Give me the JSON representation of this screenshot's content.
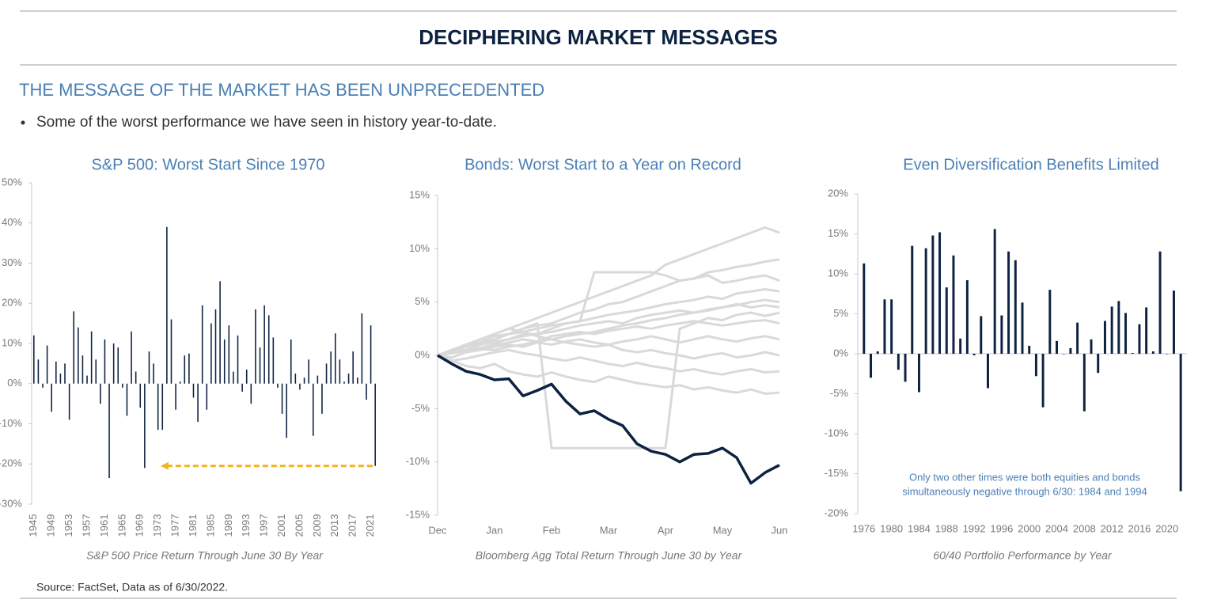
{
  "header": {
    "title": "DECIPHERING MARKET MESSAGES",
    "subtitle": "THE MESSAGE OF THE MARKET HAS BEEN UNPRECEDENTED",
    "bullet": "Some of the worst performance we have seen in history year-to-date.",
    "source": "Source: FactSet, Data as of 6/30/2022."
  },
  "chart_data": [
    {
      "type": "bar",
      "title": "S&P 500: Worst Start Since 1970",
      "xlabel": "S&P 500 Price Return Through June 30 By Year",
      "color": "#0d2240",
      "x": [
        1945,
        1946,
        1947,
        1948,
        1949,
        1950,
        1951,
        1952,
        1953,
        1954,
        1955,
        1956,
        1957,
        1958,
        1959,
        1960,
        1961,
        1962,
        1963,
        1964,
        1965,
        1966,
        1967,
        1968,
        1969,
        1970,
        1971,
        1972,
        1973,
        1974,
        1975,
        1976,
        1977,
        1978,
        1979,
        1980,
        1981,
        1982,
        1983,
        1984,
        1985,
        1986,
        1987,
        1988,
        1989,
        1990,
        1991,
        1992,
        1993,
        1994,
        1995,
        1996,
        1997,
        1998,
        1999,
        2000,
        2001,
        2002,
        2003,
        2004,
        2005,
        2006,
        2007,
        2008,
        2009,
        2010,
        2011,
        2012,
        2013,
        2014,
        2015,
        2016,
        2017,
        2018,
        2019,
        2020,
        2021,
        2022
      ],
      "values": [
        12,
        6,
        -1,
        9.5,
        -7,
        5.5,
        2.5,
        5,
        -9,
        18,
        14,
        7,
        2,
        13,
        6,
        -5,
        11,
        -23.5,
        10,
        9,
        -1,
        -8,
        13,
        3,
        -6,
        -21,
        8,
        5,
        -11.5,
        -11.5,
        39,
        16,
        -6.5,
        0.5,
        7,
        7.5,
        -3.5,
        -9.5,
        19.5,
        -6.5,
        15,
        18.5,
        25.5,
        11,
        14.5,
        3,
        12,
        -2,
        3.5,
        -5,
        18.5,
        9,
        19.5,
        17,
        11.5,
        -1,
        -7.5,
        -13.5,
        11,
        2.5,
        -1.5,
        1.5,
        6,
        -13,
        2,
        -7.5,
        5,
        8,
        12.5,
        6,
        0.5,
        2.5,
        8,
        1.5,
        17.5,
        -4,
        14.5,
        -20.5
      ],
      "xlim": [
        1944.5,
        2022.5
      ],
      "xticks": [
        1945,
        1949,
        1953,
        1957,
        1961,
        1965,
        1969,
        1973,
        1977,
        1981,
        1985,
        1989,
        1993,
        1997,
        2001,
        2005,
        2009,
        2013,
        2017,
        2021
      ],
      "ylim": [
        -30,
        50
      ],
      "yticks": [
        {
          "value": -30,
          "label": "-30%"
        },
        {
          "value": -20,
          "label": "-20%"
        },
        {
          "value": -10,
          "label": "-10%"
        },
        {
          "value": 0,
          "label": "0%"
        },
        {
          "value": 10,
          "label": "10%"
        },
        {
          "value": 20,
          "label": "20%"
        },
        {
          "value": 30,
          "label": "30%"
        },
        {
          "value": 40,
          "label": "40%"
        },
        {
          "value": 50,
          "label": "50%"
        }
      ]
    },
    {
      "type": "line",
      "title": "Bonds: Worst Start to a Year on Record",
      "xlabel": "Bloomberg Agg Total Return Through June 30 by Year",
      "x": [
        0,
        0.25,
        0.5,
        0.75,
        1,
        1.25,
        1.5,
        1.75,
        2,
        2.25,
        2.5,
        2.75,
        3,
        3.25,
        3.5,
        3.75,
        4,
        4.25,
        4.5,
        4.75,
        5,
        5.25,
        5.5,
        5.75,
        6
      ],
      "series": [
        {
          "color": "#d9d9d9",
          "values": [
            0,
            0.5,
            1,
            1.5,
            2,
            2.5,
            3,
            3.5,
            4,
            4.5,
            5,
            5.5,
            6,
            6.5,
            7,
            7.5,
            8.5,
            9,
            9.5,
            10,
            10.5,
            11,
            11.5,
            12,
            11.5
          ]
        },
        {
          "color": "#d9d9d9",
          "values": [
            0,
            0.3,
            0.8,
            1.2,
            1.5,
            2,
            2.5,
            2.8,
            3,
            3.5,
            4,
            4.3,
            4.8,
            5,
            5.5,
            6,
            6.5,
            7,
            7.2,
            7.8,
            8,
            8.3,
            8.5,
            8.8,
            9
          ]
        },
        {
          "color": "#d9d9d9",
          "values": [
            0,
            0.5,
            1,
            1.2,
            1.8,
            2,
            2.2,
            2.5,
            2.8,
            3,
            3.2,
            7.8,
            7.8,
            7.8,
            7.8,
            7.8,
            7.5,
            7,
            7.2,
            7.5,
            6.8,
            7,
            7.3,
            7.5,
            7
          ]
        },
        {
          "color": "#d9d9d9",
          "values": [
            0,
            0.2,
            0.5,
            1,
            1.3,
            1.5,
            2,
            2,
            2.5,
            3,
            3.2,
            3.5,
            3.8,
            4,
            4.2,
            4.5,
            4.8,
            5,
            5.2,
            5.5,
            5.3,
            5.8,
            6,
            6.2,
            6
          ]
        },
        {
          "color": "#d9d9d9",
          "values": [
            0,
            0.5,
            0.8,
            1,
            1.2,
            1.5,
            1.8,
            2,
            2.2,
            2.5,
            2.8,
            3,
            3.2,
            3,
            3.5,
            3.8,
            4,
            4.2,
            4,
            4.3,
            4.5,
            4.8,
            4.5,
            4.7,
            4.5
          ]
        },
        {
          "color": "#d9d9d9",
          "values": [
            0,
            0.3,
            0.5,
            0.7,
            1,
            1.2,
            1.5,
            1.3,
            1.8,
            2,
            2.2,
            2,
            2.3,
            2.5,
            2.7,
            2.5,
            2.8,
            3,
            3.2,
            3,
            2.8,
            3,
            3.2,
            3.3,
            3
          ]
        },
        {
          "color": "#d9d9d9",
          "values": [
            0,
            -0.2,
            0.3,
            0.5,
            0.8,
            1,
            0.8,
            1.2,
            1,
            1.3,
            1.5,
            1.2,
            1,
            1.3,
            1.5,
            1.8,
            1.5,
            1.2,
            1.5,
            1.8,
            1.5,
            1.3,
            1.6,
            1.8,
            1.5
          ]
        },
        {
          "color": "#d9d9d9",
          "values": [
            0,
            0.5,
            1,
            1.5,
            2,
            2.5,
            2.2,
            1.8,
            1.5,
            1.2,
            1,
            0.8,
            1,
            0.5,
            0.3,
            0.5,
            0.2,
            0,
            -0.3,
            0,
            0.2,
            -0.2,
            0,
            0.3,
            0
          ]
        },
        {
          "color": "#d9d9d9",
          "values": [
            0,
            -0.5,
            -0.3,
            0,
            0.3,
            0.5,
            0.2,
            0,
            -0.3,
            -0.5,
            -0.2,
            -0.5,
            -0.8,
            -1,
            -0.7,
            -1,
            -1.2,
            -1.5,
            -1.3,
            -1.6,
            -1.8,
            -1.5,
            -1.3,
            -1.6,
            -1.5
          ]
        },
        {
          "color": "#d9d9d9",
          "values": [
            0,
            -0.5,
            -1,
            -1.2,
            -0.8,
            -1.5,
            -1.8,
            -2,
            -1.6,
            -2,
            -2.3,
            -2.5,
            -2,
            -2.3,
            -2.6,
            -2.8,
            -3,
            -2.8,
            -3.2,
            -3,
            -3.3,
            -3.5,
            -3.2,
            -3.6,
            -3.5
          ]
        },
        {
          "color": "#d9d9d9",
          "values": [
            0,
            0.5,
            1,
            1.5,
            1.8,
            2,
            2.5,
            3,
            -8.7,
            -8.7,
            -8.7,
            -8.7,
            -8.7,
            -8.7,
            -8.7,
            -8.7,
            -8.7,
            2.5,
            3,
            3.5,
            3.3,
            3.8,
            4,
            3.7,
            4
          ]
        },
        {
          "color": "#d9d9d9",
          "values": [
            0,
            0.2,
            0.4,
            0.6,
            0.5,
            0.8,
            1,
            1.3,
            1.5,
            1.8,
            2,
            2.2,
            2.5,
            2.8,
            3,
            3.3,
            3.5,
            3.8,
            4,
            4.2,
            4.5,
            4.7,
            5,
            5.2,
            5
          ]
        },
        {
          "color": "#0d2240",
          "values": [
            0,
            -0.8,
            -1.5,
            -1.8,
            -2.3,
            -2.2,
            -3.8,
            -3.3,
            -2.7,
            -4.3,
            -5.5,
            -5.2,
            -6,
            -6.6,
            -8.3,
            -9,
            -9.3,
            -10,
            -9.3,
            -9.2,
            -8.7,
            -9.6,
            -12,
            -11,
            -10.3
          ]
        }
      ],
      "xlim": [
        0,
        6
      ],
      "xticks": [
        {
          "value": 0,
          "label": "Dec"
        },
        {
          "value": 1,
          "label": "Jan"
        },
        {
          "value": 2,
          "label": "Feb"
        },
        {
          "value": 3,
          "label": "Mar"
        },
        {
          "value": 4,
          "label": "Apr"
        },
        {
          "value": 5,
          "label": "May"
        },
        {
          "value": 6,
          "label": "Jun"
        }
      ],
      "ylim": [
        -15,
        15
      ],
      "yticks": [
        {
          "value": -15,
          "label": "-15%"
        },
        {
          "value": -10,
          "label": "-10%"
        },
        {
          "value": -5,
          "label": "-5%"
        },
        {
          "value": 0,
          "label": "0%"
        },
        {
          "value": 5,
          "label": "5%"
        },
        {
          "value": 10,
          "label": "10%"
        },
        {
          "value": 15,
          "label": "15%"
        }
      ]
    },
    {
      "type": "bar",
      "title": "Even Diversification Benefits Limited",
      "xlabel": "60/40 Portfolio Performance by Year",
      "color": "#0d2240",
      "annotation": [
        "Only two other times were both equities and bonds",
        "simultaneously negative through 6/30: 1984 and 1994"
      ],
      "x": [
        1976,
        1977,
        1978,
        1979,
        1980,
        1981,
        1982,
        1983,
        1984,
        1985,
        1986,
        1987,
        1988,
        1989,
        1990,
        1991,
        1992,
        1993,
        1994,
        1995,
        1996,
        1997,
        1998,
        1999,
        2000,
        2001,
        2002,
        2003,
        2004,
        2005,
        2006,
        2007,
        2008,
        2009,
        2010,
        2011,
        2012,
        2013,
        2014,
        2015,
        2016,
        2017,
        2018,
        2019,
        2020,
        2021,
        2022
      ],
      "values": [
        11.3,
        -3,
        0.3,
        6.8,
        6.8,
        -2,
        -3.5,
        13.5,
        -4.8,
        13.2,
        14.8,
        15.2,
        8.3,
        12.3,
        1.9,
        9.2,
        -0.2,
        4.7,
        -4.3,
        15.6,
        4.8,
        12.8,
        11.7,
        6.4,
        1,
        -2.8,
        -6.7,
        8,
        1.6,
        0,
        0.7,
        3.9,
        -7.2,
        1.8,
        -2.4,
        4.1,
        5.9,
        6.6,
        5.1,
        0.1,
        3.7,
        5.8,
        0.3,
        12.8,
        0,
        7.9,
        -17.2
      ],
      "xlim": [
        1975.1,
        2022.9
      ],
      "xticks": [
        1976,
        1980,
        1984,
        1988,
        1992,
        1996,
        2000,
        2004,
        2008,
        2012,
        2016,
        2020
      ],
      "ylim": [
        -20,
        20
      ],
      "yticks": [
        {
          "value": -20,
          "label": "-20%"
        },
        {
          "value": -15,
          "label": "-15%"
        },
        {
          "value": -10,
          "label": "-10%"
        },
        {
          "value": -5,
          "label": "-5%"
        },
        {
          "value": 0,
          "label": "0%"
        },
        {
          "value": 5,
          "label": "5%"
        },
        {
          "value": 10,
          "label": "10%"
        },
        {
          "value": 15,
          "label": "15%"
        },
        {
          "value": 20,
          "label": "20%"
        }
      ]
    }
  ]
}
